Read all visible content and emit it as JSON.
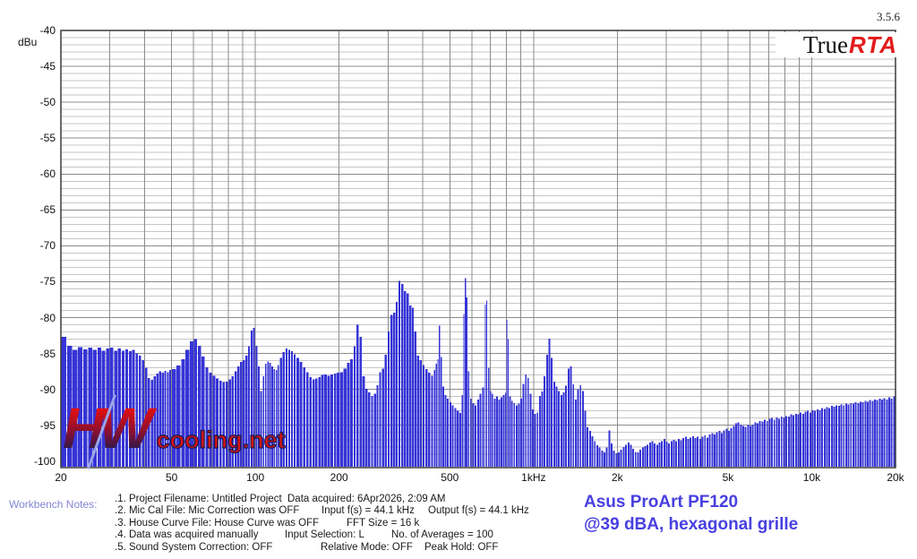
{
  "header": {
    "version": "3.5.6",
    "logo_true": "True",
    "logo_rta": "RTA"
  },
  "watermark": {
    "hw": "HW",
    "site": "cooling.net"
  },
  "annotation": {
    "line1": "Asus ProArt PF120",
    "line2": "@39 dBA, hexagonal grille"
  },
  "notes": {
    "label": "Workbench Notes:",
    "lines": [
      {
        "c1": ".1. Project Filename: Untitled Project",
        "c2": "Data acquired: 6Apr2026, 2:09 AM",
        "c3": ""
      },
      {
        "c1": ".2. Mic Cal File: Mic Correction was OFF",
        "c2": "Input f(s) = 44.1 kHz",
        "c3": "Output f(s) = 44.1 kHz"
      },
      {
        "c1": ".3. House Curve File: House Curve was OFF",
        "c2": "FFT Size = 16 k",
        "c3": ""
      },
      {
        "c1": ".4. Data was acquired manually",
        "c2": "Input Selection: L",
        "c3": "No. of Averages = 100"
      },
      {
        "c1": ".5. Sound System Correction: OFF",
        "c2": "Relative Mode: OFF",
        "c3": "Peak Hold: OFF"
      }
    ]
  },
  "colors": {
    "bar": "#3634d6",
    "grid_minor": "#c6c6c6",
    "grid_major": "#8c8c8c",
    "border": "#3a3a3a",
    "logo_red": "#e31b1b",
    "annotation_blue": "#4840e0",
    "notes_label_blue": "#8484d4",
    "watermark_red": "#d41414",
    "watermark_navy": "#181850"
  },
  "chart_data": {
    "type": "bar",
    "ylabel": "dBu",
    "xlim": [
      20,
      20000
    ],
    "ylim": [
      -100,
      -40
    ],
    "x_scale": "log",
    "grid": "1 dB minor / 5 dB major horizontal, 1-2-3...9 per decade vertical",
    "y_ticks": [
      -40,
      -45,
      -50,
      -55,
      -60,
      -65,
      -70,
      -75,
      -80,
      -85,
      -90,
      -95,
      -100
    ],
    "x_ticks": [
      {
        "f": 20,
        "label": "20"
      },
      {
        "f": 50,
        "label": "50"
      },
      {
        "f": 100,
        "label": "100"
      },
      {
        "f": 200,
        "label": "200"
      },
      {
        "f": 500,
        "label": "500"
      },
      {
        "f": 1000,
        "label": "1kHz"
      },
      {
        "f": 2000,
        "label": "2k"
      },
      {
        "f": 5000,
        "label": "5k"
      },
      {
        "f": 10000,
        "label": "10k"
      },
      {
        "f": 20000,
        "label": "20k"
      }
    ],
    "points": [
      [
        20,
        -82.7
      ],
      [
        21,
        -83.9
      ],
      [
        22,
        -84.5
      ],
      [
        23,
        -84.1
      ],
      [
        24,
        -84.4
      ],
      [
        25,
        -84.2
      ],
      [
        26,
        -84.5
      ],
      [
        27,
        -84.2
      ],
      [
        28,
        -84.6
      ],
      [
        29,
        -84.3
      ],
      [
        30,
        -84.2
      ],
      [
        31,
        -84.6
      ],
      [
        32,
        -84.3
      ],
      [
        33,
        -84.6
      ],
      [
        34,
        -84.4
      ],
      [
        35,
        -84.7
      ],
      [
        36,
        -84.5
      ],
      [
        37,
        -85.0
      ],
      [
        38,
        -85.3
      ],
      [
        39,
        -85.9
      ],
      [
        40,
        -87.0
      ],
      [
        41,
        -88.4
      ],
      [
        42,
        -88.7
      ],
      [
        43,
        -88.2
      ],
      [
        44,
        -87.8
      ],
      [
        45,
        -87.5
      ],
      [
        46,
        -87.7
      ],
      [
        47,
        -87.4
      ],
      [
        48,
        -87.6
      ],
      [
        49,
        -87.3
      ],
      [
        50,
        -87.2
      ],
      [
        52,
        -86.7
      ],
      [
        54,
        -85.8
      ],
      [
        56,
        -84.5
      ],
      [
        58,
        -83.3
      ],
      [
        60,
        -83.0
      ],
      [
        62,
        -83.9
      ],
      [
        64,
        -85.4
      ],
      [
        66,
        -86.9
      ],
      [
        68,
        -87.7
      ],
      [
        70,
        -88.1
      ],
      [
        72,
        -88.5
      ],
      [
        74,
        -88.8
      ],
      [
        76,
        -89.0
      ],
      [
        78,
        -88.9
      ],
      [
        80,
        -88.6
      ],
      [
        82,
        -88.2
      ],
      [
        84,
        -87.5
      ],
      [
        86,
        -86.8
      ],
      [
        88,
        -86.2
      ],
      [
        90,
        -85.9
      ],
      [
        92,
        -85.3
      ],
      [
        94,
        -84.0
      ],
      [
        96,
        -81.8
      ],
      [
        98,
        -81.4
      ],
      [
        100,
        -83.9
      ],
      [
        102,
        -86.8
      ],
      [
        104,
        -90.2
      ],
      [
        106,
        -88.2
      ],
      [
        108,
        -86.4
      ],
      [
        110,
        -86.1
      ],
      [
        112,
        -86.3
      ],
      [
        114,
        -86.8
      ],
      [
        116,
        -87.2
      ],
      [
        118,
        -87.3
      ],
      [
        120,
        -86.6
      ],
      [
        122,
        -85.6
      ],
      [
        125,
        -84.8
      ],
      [
        128,
        -84.3
      ],
      [
        131,
        -84.5
      ],
      [
        134,
        -84.7
      ],
      [
        137,
        -85.1
      ],
      [
        140,
        -85.6
      ],
      [
        144,
        -86.2
      ],
      [
        148,
        -86.9
      ],
      [
        152,
        -87.6
      ],
      [
        156,
        -88.3
      ],
      [
        160,
        -88.6
      ],
      [
        164,
        -88.5
      ],
      [
        168,
        -88.3
      ],
      [
        172,
        -88.0
      ],
      [
        176,
        -87.9
      ],
      [
        181,
        -88.1
      ],
      [
        186,
        -87.9
      ],
      [
        191,
        -87.8
      ],
      [
        196,
        -87.7
      ],
      [
        201,
        -87.6
      ],
      [
        207,
        -87.1
      ],
      [
        213,
        -86.3
      ],
      [
        219,
        -85.8
      ],
      [
        225,
        -84.0
      ],
      [
        230,
        -81.0
      ],
      [
        236,
        -82.7
      ],
      [
        242,
        -88.2
      ],
      [
        248,
        -89.9
      ],
      [
        254,
        -90.4
      ],
      [
        260,
        -90.9
      ],
      [
        266,
        -90.6
      ],
      [
        272,
        -89.4
      ],
      [
        278,
        -87.6
      ],
      [
        284,
        -87.1
      ],
      [
        291,
        -85.2
      ],
      [
        298,
        -81.9
      ],
      [
        305,
        -79.6
      ],
      [
        312,
        -79.3
      ],
      [
        319,
        -77.8
      ],
      [
        326,
        -74.9
      ],
      [
        333,
        -75.3
      ],
      [
        341,
        -76.3
      ],
      [
        349,
        -76.6
      ],
      [
        357,
        -78.3
      ],
      [
        365,
        -78.6
      ],
      [
        372,
        -81.9
      ],
      [
        380,
        -85.3
      ],
      [
        389,
        -85.9
      ],
      [
        398,
        -86.6
      ],
      [
        407,
        -87.2
      ],
      [
        417,
        -87.7
      ],
      [
        427,
        -88.1
      ],
      [
        437,
        -87.3
      ],
      [
        444,
        -86.4
      ],
      [
        450,
        -85.8
      ],
      [
        456,
        -81.1
      ],
      [
        462,
        -85.5
      ],
      [
        470,
        -89.6
      ],
      [
        478,
        -90.8
      ],
      [
        487,
        -91.3
      ],
      [
        497,
        -91.8
      ],
      [
        507,
        -92.2
      ],
      [
        518,
        -92.6
      ],
      [
        529,
        -93.0
      ],
      [
        540,
        -93.3
      ],
      [
        551,
        -90.8
      ],
      [
        558,
        -79.5
      ],
      [
        565,
        -74.5
      ],
      [
        572,
        -77.2
      ],
      [
        580,
        -87.5
      ],
      [
        590,
        -91.3
      ],
      [
        601,
        -91.9
      ],
      [
        613,
        -92.2
      ],
      [
        626,
        -91.4
      ],
      [
        639,
        -90.6
      ],
      [
        652,
        -89.7
      ],
      [
        666,
        -78.2
      ],
      [
        674,
        -77.6
      ],
      [
        684,
        -87.0
      ],
      [
        695,
        -90.2
      ],
      [
        705,
        -90.6
      ],
      [
        718,
        -91.3
      ],
      [
        732,
        -91.0
      ],
      [
        746,
        -91.4
      ],
      [
        760,
        -91.1
      ],
      [
        774,
        -90.8
      ],
      [
        788,
        -90.5
      ],
      [
        796,
        -80.3
      ],
      [
        805,
        -83.0
      ],
      [
        815,
        -91.0
      ],
      [
        830,
        -91.6
      ],
      [
        845,
        -91.9
      ],
      [
        861,
        -92.2
      ],
      [
        878,
        -92.0
      ],
      [
        895,
        -91.3
      ],
      [
        912,
        -89.2
      ],
      [
        930,
        -87.9
      ],
      [
        948,
        -88.4
      ],
      [
        966,
        -90.6
      ],
      [
        985,
        -92.8
      ],
      [
        1004,
        -93.4
      ],
      [
        1024,
        -93.2
      ],
      [
        1044,
        -90.9
      ],
      [
        1064,
        -90.3
      ],
      [
        1085,
        -88.2
      ],
      [
        1107,
        -85.2
      ],
      [
        1129,
        -82.9
      ],
      [
        1152,
        -85.6
      ],
      [
        1175,
        -88.9
      ],
      [
        1198,
        -89.6
      ],
      [
        1222,
        -90.2
      ],
      [
        1247,
        -90.8
      ],
      [
        1272,
        -90.4
      ],
      [
        1297,
        -89.5
      ],
      [
        1323,
        -87.1
      ],
      [
        1350,
        -86.8
      ],
      [
        1377,
        -89.3
      ],
      [
        1404,
        -91.4
      ],
      [
        1432,
        -90.0
      ],
      [
        1461,
        -89.4
      ],
      [
        1490,
        -90.2
      ],
      [
        1520,
        -93.0
      ],
      [
        1550,
        -95.3
      ],
      [
        1581,
        -95.8
      ],
      [
        1613,
        -96.5
      ],
      [
        1645,
        -97.2
      ],
      [
        1678,
        -97.8
      ],
      [
        1712,
        -98.1
      ],
      [
        1746,
        -98.5
      ],
      [
        1781,
        -98.8
      ],
      [
        1817,
        -98.1
      ],
      [
        1853,
        -95.7
      ],
      [
        1890,
        -97.5
      ],
      [
        1928,
        -98.5
      ],
      [
        1967,
        -98.9
      ],
      [
        2006,
        -98.8
      ],
      [
        2046,
        -98.4
      ],
      [
        2087,
        -98.0
      ],
      [
        2129,
        -97.7
      ],
      [
        2172,
        -97.4
      ],
      [
        2216,
        -97.7
      ],
      [
        2260,
        -98.3
      ],
      [
        2305,
        -98.7
      ],
      [
        2351,
        -98.8
      ],
      [
        2398,
        -98.4
      ],
      [
        2446,
        -98.1
      ],
      [
        2495,
        -97.9
      ],
      [
        2545,
        -97.7
      ],
      [
        2596,
        -97.4
      ],
      [
        2648,
        -97.2
      ],
      [
        2701,
        -97.5
      ],
      [
        2755,
        -97.7
      ],
      [
        2810,
        -97.4
      ],
      [
        2866,
        -97.2
      ],
      [
        2923,
        -96.9
      ],
      [
        2981,
        -97.3
      ],
      [
        3041,
        -97.5
      ],
      [
        3102,
        -97.2
      ],
      [
        3164,
        -97.0
      ],
      [
        3227,
        -97.2
      ],
      [
        3292,
        -96.9
      ],
      [
        3358,
        -97.1
      ],
      [
        3425,
        -96.8
      ],
      [
        3493,
        -96.6
      ],
      [
        3563,
        -96.9
      ],
      [
        3634,
        -96.7
      ],
      [
        3707,
        -96.5
      ],
      [
        3781,
        -96.8
      ],
      [
        3857,
        -96.6
      ],
      [
        3934,
        -96.9
      ],
      [
        4013,
        -96.6
      ],
      [
        4093,
        -96.4
      ],
      [
        4175,
        -96.7
      ],
      [
        4259,
        -96.3
      ],
      [
        4344,
        -96.1
      ],
      [
        4431,
        -96.3
      ],
      [
        4520,
        -96.0
      ],
      [
        4610,
        -95.8
      ],
      [
        4702,
        -96.1
      ],
      [
        4796,
        -95.7
      ],
      [
        4892,
        -95.5
      ],
      [
        4990,
        -95.8
      ],
      [
        5090,
        -95.4
      ],
      [
        5192,
        -95.1
      ],
      [
        5296,
        -94.7
      ],
      [
        5402,
        -94.6
      ],
      [
        5510,
        -94.9
      ],
      [
        5620,
        -95.1
      ],
      [
        5732,
        -95.2
      ],
      [
        5847,
        -94.9
      ],
      [
        5964,
        -95.1
      ],
      [
        6083,
        -94.9
      ],
      [
        6205,
        -94.6
      ],
      [
        6329,
        -94.7
      ],
      [
        6456,
        -94.4
      ],
      [
        6585,
        -94.5
      ],
      [
        6717,
        -94.2
      ],
      [
        6851,
        -94.4
      ],
      [
        6988,
        -94.1
      ],
      [
        7128,
        -94.0
      ],
      [
        7271,
        -94.2
      ],
      [
        7416,
        -93.9
      ],
      [
        7564,
        -94.1
      ],
      [
        7715,
        -93.8
      ],
      [
        7869,
        -93.9
      ],
      [
        8026,
        -93.7
      ],
      [
        8187,
        -93.8
      ],
      [
        8351,
        -93.5
      ],
      [
        8518,
        -93.6
      ],
      [
        8688,
        -93.4
      ],
      [
        8862,
        -93.5
      ],
      [
        9039,
        -93.2
      ],
      [
        9220,
        -93.4
      ],
      [
        9404,
        -93.1
      ],
      [
        9592,
        -93.0
      ],
      [
        9784,
        -93.2
      ],
      [
        9980,
        -92.9
      ],
      [
        10180,
        -93.0
      ],
      [
        10384,
        -92.8
      ],
      [
        10592,
        -92.9
      ],
      [
        10804,
        -92.6
      ],
      [
        11020,
        -92.7
      ],
      [
        11240,
        -92.5
      ],
      [
        11465,
        -92.6
      ],
      [
        11694,
        -92.3
      ],
      [
        11928,
        -92.4
      ],
      [
        12167,
        -92.2
      ],
      [
        12410,
        -92.3
      ],
      [
        12658,
        -92.1
      ],
      [
        12911,
        -92.2
      ],
      [
        13169,
        -92.0
      ],
      [
        13432,
        -92.1
      ],
      [
        13701,
        -91.9
      ],
      [
        13975,
        -92.0
      ],
      [
        14255,
        -91.8
      ],
      [
        14540,
        -91.9
      ],
      [
        14831,
        -91.7
      ],
      [
        15128,
        -91.8
      ],
      [
        15431,
        -91.6
      ],
      [
        15740,
        -91.7
      ],
      [
        16055,
        -91.5
      ],
      [
        16376,
        -91.6
      ],
      [
        16704,
        -91.4
      ],
      [
        17038,
        -91.5
      ],
      [
        17379,
        -91.3
      ],
      [
        17727,
        -91.4
      ],
      [
        18082,
        -91.2
      ],
      [
        18444,
        -91.4
      ],
      [
        18813,
        -91.1
      ],
      [
        19189,
        -91.3
      ],
      [
        19573,
        -91.0
      ],
      [
        19964,
        -91.5
      ]
    ]
  }
}
